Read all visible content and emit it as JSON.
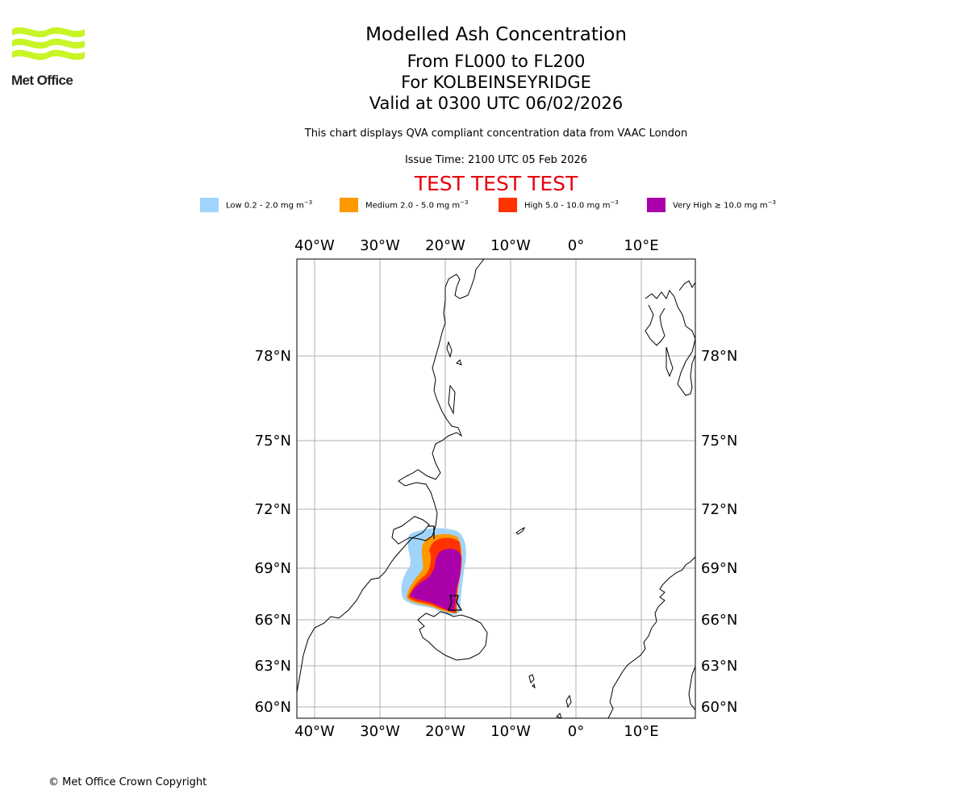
{
  "logo": {
    "text": "Met Office",
    "color": "#c8f526"
  },
  "header": {
    "title": "Modelled Ash Concentration",
    "levels": "From FL000 to FL200",
    "location": "For KOLBEINSEYRIDGE",
    "valid": "Valid at 0300 UTC 06/02/2026",
    "description": "This chart displays QVA compliant concentration data from VAAC London",
    "issue_time": "Issue Time: 2100 UTC 05 Feb 2026",
    "test_banner": "TEST TEST TEST"
  },
  "legend": [
    {
      "label": "Low 0.2 - 2.0 mg m",
      "unit": "−3",
      "color": "#a0d4fa"
    },
    {
      "label": "Medium 2.0 - 5.0 mg m",
      "unit": "−3",
      "color": "#ff9900"
    },
    {
      "label": "High 5.0 - 10.0 mg m",
      "unit": "−3",
      "color": "#ff3300"
    },
    {
      "label": "Very High  ≥  10.0 mg m",
      "unit": "−3",
      "color": "#aa00aa"
    }
  ],
  "map": {
    "lon_labels": [
      "40°W",
      "30°W",
      "20°W",
      "10°W",
      "0°",
      "10°E"
    ],
    "lat_labels": [
      "78°N",
      "75°N",
      "72°N",
      "69°N",
      "66°N",
      "63°N",
      "60°N"
    ]
  },
  "footer": {
    "copyright": "© Met Office Crown Copyright"
  }
}
